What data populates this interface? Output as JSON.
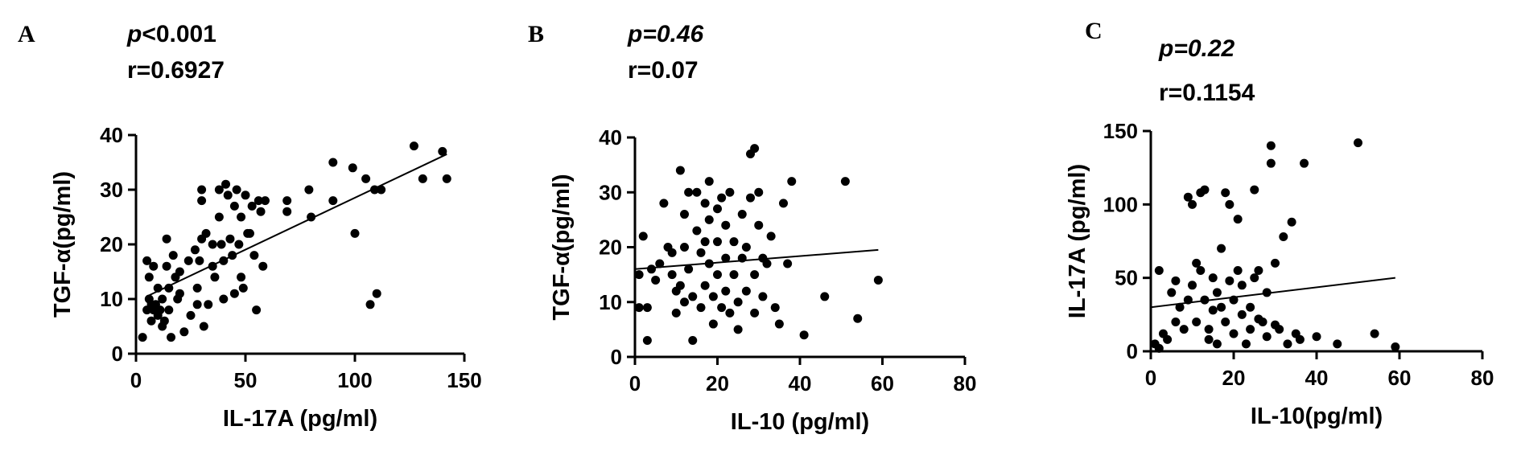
{
  "chart_data": [
    {
      "type": "scatter",
      "panel": "A",
      "p_prefix": "p",
      "p_rest": "<0.001",
      "r_text": "r=0.6927",
      "xlabel": "IL-17A (pg/ml)",
      "ylabel": "TGF-α(pg/ml)",
      "xlim": [
        0,
        150
      ],
      "ylim": [
        0,
        40
      ],
      "xticks": [
        0,
        50,
        100,
        150
      ],
      "yticks": [
        0,
        10,
        20,
        30,
        40
      ],
      "regression": {
        "x": [
          5,
          142
        ],
        "y": [
          10.5,
          36.5
        ]
      },
      "points": [
        [
          3,
          3
        ],
        [
          5,
          17
        ],
        [
          5,
          8
        ],
        [
          6,
          14
        ],
        [
          6,
          10
        ],
        [
          7,
          9
        ],
        [
          7,
          6
        ],
        [
          8,
          16
        ],
        [
          8,
          8
        ],
        [
          9,
          9
        ],
        [
          10,
          12
        ],
        [
          10,
          7
        ],
        [
          11,
          8
        ],
        [
          12,
          10
        ],
        [
          12,
          5
        ],
        [
          13,
          6
        ],
        [
          14,
          16
        ],
        [
          14,
          21
        ],
        [
          15,
          12
        ],
        [
          15,
          8
        ],
        [
          16,
          3
        ],
        [
          17,
          18
        ],
        [
          18,
          14
        ],
        [
          19,
          10
        ],
        [
          20,
          15
        ],
        [
          20,
          11
        ],
        [
          22,
          4
        ],
        [
          24,
          17
        ],
        [
          25,
          7
        ],
        [
          27,
          19
        ],
        [
          28,
          12
        ],
        [
          28,
          9
        ],
        [
          29,
          17
        ],
        [
          30,
          21
        ],
        [
          30,
          28
        ],
        [
          30,
          30
        ],
        [
          31,
          5
        ],
        [
          32,
          22
        ],
        [
          33,
          9
        ],
        [
          35,
          20
        ],
        [
          35,
          16
        ],
        [
          36,
          14
        ],
        [
          38,
          30
        ],
        [
          38,
          25
        ],
        [
          39,
          20
        ],
        [
          40,
          17
        ],
        [
          40,
          10
        ],
        [
          41,
          31
        ],
        [
          42,
          29
        ],
        [
          43,
          21
        ],
        [
          44,
          18
        ],
        [
          45,
          11
        ],
        [
          45,
          27
        ],
        [
          46,
          30
        ],
        [
          47,
          20
        ],
        [
          48,
          14
        ],
        [
          48,
          25
        ],
        [
          49,
          12
        ],
        [
          50,
          29
        ],
        [
          51,
          22
        ],
        [
          52,
          22
        ],
        [
          53,
          27
        ],
        [
          54,
          18
        ],
        [
          55,
          8
        ],
        [
          56,
          28
        ],
        [
          57,
          26
        ],
        [
          58,
          16
        ],
        [
          59,
          28
        ],
        [
          69,
          28
        ],
        [
          69,
          26
        ],
        [
          79,
          30
        ],
        [
          80,
          25
        ],
        [
          90,
          35
        ],
        [
          90,
          28
        ],
        [
          99,
          34
        ],
        [
          100,
          22
        ],
        [
          105,
          32
        ],
        [
          107,
          9
        ],
        [
          109,
          30
        ],
        [
          110,
          11
        ],
        [
          112,
          30
        ],
        [
          127,
          38
        ],
        [
          131,
          32
        ],
        [
          140,
          37
        ],
        [
          142,
          32
        ]
      ]
    },
    {
      "type": "scatter",
      "panel": "B",
      "p_prefix": "p",
      "p_rest": "=0.46",
      "r_text": "r=0.07",
      "xlabel": "IL-10 (pg/ml)",
      "ylabel": "TGF-α(pg/ml)",
      "xlim": [
        0,
        80
      ],
      "ylim": [
        0,
        40
      ],
      "xticks": [
        0,
        20,
        40,
        60,
        80
      ],
      "yticks": [
        0,
        10,
        20,
        30,
        40
      ],
      "regression": {
        "x": [
          0,
          59
        ],
        "y": [
          16,
          19.5
        ]
      },
      "points": [
        [
          1,
          15
        ],
        [
          1,
          9
        ],
        [
          2,
          22
        ],
        [
          3,
          9
        ],
        [
          3,
          3
        ],
        [
          4,
          16
        ],
        [
          5,
          14
        ],
        [
          6,
          17
        ],
        [
          7,
          28
        ],
        [
          8,
          20
        ],
        [
          9,
          19
        ],
        [
          9,
          15
        ],
        [
          10,
          8
        ],
        [
          10,
          12
        ],
        [
          11,
          13
        ],
        [
          11,
          34
        ],
        [
          12,
          20
        ],
        [
          12,
          26
        ],
        [
          12,
          10
        ],
        [
          13,
          30
        ],
        [
          13,
          16
        ],
        [
          14,
          3
        ],
        [
          14,
          11
        ],
        [
          15,
          30
        ],
        [
          15,
          23
        ],
        [
          16,
          19
        ],
        [
          16,
          9
        ],
        [
          17,
          28
        ],
        [
          17,
          21
        ],
        [
          17,
          13
        ],
        [
          18,
          32
        ],
        [
          18,
          25
        ],
        [
          18,
          17
        ],
        [
          19,
          11
        ],
        [
          19,
          6
        ],
        [
          20,
          27
        ],
        [
          20,
          21
        ],
        [
          20,
          15
        ],
        [
          21,
          9
        ],
        [
          21,
          29
        ],
        [
          22,
          24
        ],
        [
          22,
          18
        ],
        [
          22,
          12
        ],
        [
          23,
          30
        ],
        [
          23,
          8
        ],
        [
          24,
          21
        ],
        [
          24,
          15
        ],
        [
          25,
          10
        ],
        [
          25,
          5
        ],
        [
          26,
          26
        ],
        [
          26,
          18
        ],
        [
          27,
          12
        ],
        [
          27,
          20
        ],
        [
          28,
          29
        ],
        [
          28,
          37
        ],
        [
          29,
          38
        ],
        [
          29,
          15
        ],
        [
          29,
          8
        ],
        [
          30,
          24
        ],
        [
          30,
          30
        ],
        [
          31,
          18
        ],
        [
          31,
          11
        ],
        [
          32,
          17
        ],
        [
          33,
          22
        ],
        [
          34,
          9
        ],
        [
          35,
          6
        ],
        [
          36,
          28
        ],
        [
          37,
          17
        ],
        [
          38,
          32
        ],
        [
          41,
          4
        ],
        [
          46,
          11
        ],
        [
          51,
          32
        ],
        [
          54,
          7
        ],
        [
          59,
          14
        ]
      ]
    },
    {
      "type": "scatter",
      "panel": "C",
      "p_prefix": "p",
      "p_rest": "=0.22",
      "r_text": "r=0.1154",
      "xlabel": "IL-10(pg/ml)",
      "ylabel": "IL-17A (pg/ml)",
      "xlim": [
        0,
        80
      ],
      "ylim": [
        0,
        150
      ],
      "xticks": [
        0,
        20,
        40,
        60,
        80
      ],
      "yticks": [
        0,
        50,
        100,
        150
      ],
      "regression": {
        "x": [
          0,
          59
        ],
        "y": [
          30,
          50
        ]
      },
      "points": [
        [
          1,
          5
        ],
        [
          2,
          55
        ],
        [
          2,
          2
        ],
        [
          3,
          12
        ],
        [
          4,
          8
        ],
        [
          5,
          40
        ],
        [
          6,
          20
        ],
        [
          6,
          48
        ],
        [
          7,
          30
        ],
        [
          8,
          15
        ],
        [
          9,
          35
        ],
        [
          9,
          105
        ],
        [
          10,
          100
        ],
        [
          10,
          45
        ],
        [
          11,
          60
        ],
        [
          11,
          20
        ],
        [
          12,
          108
        ],
        [
          12,
          55
        ],
        [
          13,
          110
        ],
        [
          13,
          35
        ],
        [
          14,
          15
        ],
        [
          14,
          8
        ],
        [
          15,
          50
        ],
        [
          15,
          28
        ],
        [
          16,
          40
        ],
        [
          16,
          5
        ],
        [
          17,
          70
        ],
        [
          17,
          30
        ],
        [
          18,
          108
        ],
        [
          18,
          20
        ],
        [
          19,
          100
        ],
        [
          19,
          48
        ],
        [
          20,
          35
        ],
        [
          20,
          12
        ],
        [
          21,
          90
        ],
        [
          21,
          55
        ],
        [
          22,
          25
        ],
        [
          22,
          45
        ],
        [
          23,
          5
        ],
        [
          24,
          30
        ],
        [
          24,
          15
        ],
        [
          25,
          110
        ],
        [
          25,
          50
        ],
        [
          26,
          55
        ],
        [
          26,
          22
        ],
        [
          27,
          20
        ],
        [
          28,
          10
        ],
        [
          28,
          40
        ],
        [
          29,
          128
        ],
        [
          29,
          140
        ],
        [
          30,
          60
        ],
        [
          30,
          18
        ],
        [
          31,
          15
        ],
        [
          32,
          78
        ],
        [
          33,
          5
        ],
        [
          34,
          88
        ],
        [
          35,
          12
        ],
        [
          36,
          8
        ],
        [
          37,
          128
        ],
        [
          40,
          10
        ],
        [
          45,
          5
        ],
        [
          50,
          142
        ],
        [
          54,
          12
        ],
        [
          59,
          3
        ]
      ]
    }
  ]
}
